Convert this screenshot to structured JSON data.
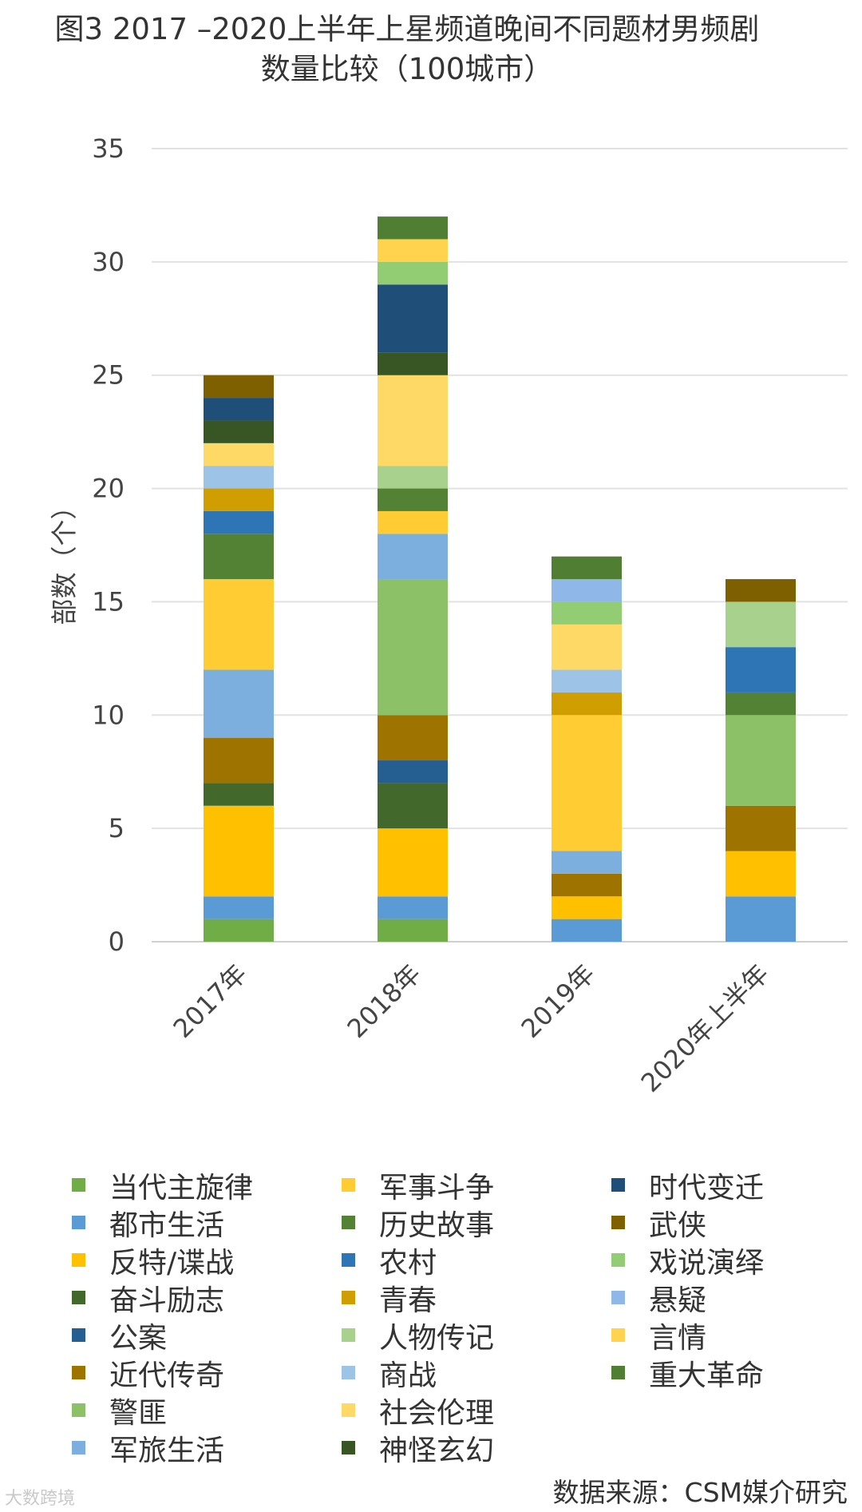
{
  "chart_data": {
    "type": "bar",
    "stacked": true,
    "title": [
      "图3  2017  –2020上半年上星频道晚间不同题材男频剧",
      "数量比较（100城市）"
    ],
    "ylabel": "部数（个）",
    "xlabel": "",
    "ylim": [
      0,
      35
    ],
    "yticks": [
      0,
      5,
      10,
      15,
      20,
      25,
      30,
      35
    ],
    "grid": true,
    "legend_position": "bottom",
    "categories": [
      "2017年",
      "2018年",
      "2019年",
      "2020年上半年"
    ],
    "series": [
      {
        "name": "当代主旋律",
        "color": "#70AD47",
        "values": [
          1,
          1,
          0,
          0
        ]
      },
      {
        "name": "都市生活",
        "color": "#5B9BD5",
        "values": [
          1,
          1,
          1,
          2
        ]
      },
      {
        "name": "反特/谍战",
        "color": "#FFC000",
        "values": [
          4,
          3,
          1,
          2
        ]
      },
      {
        "name": "奋斗励志",
        "color": "#43682B",
        "values": [
          1,
          2,
          0,
          0
        ]
      },
      {
        "name": "公案",
        "color": "#255E91",
        "values": [
          0,
          1,
          0,
          0
        ]
      },
      {
        "name": "近代传奇",
        "color": "#9E7300",
        "values": [
          2,
          2,
          1,
          2
        ]
      },
      {
        "name": "警匪",
        "color": "#8CC168",
        "values": [
          0,
          6,
          0,
          4
        ]
      },
      {
        "name": "军旅生活",
        "color": "#7CAFDD",
        "values": [
          3,
          2,
          1,
          0
        ]
      },
      {
        "name": "军事斗争",
        "color": "#FFCD33",
        "values": [
          4,
          1,
          6,
          0
        ]
      },
      {
        "name": "历史故事",
        "color": "#548235",
        "values": [
          2,
          1,
          0,
          1
        ]
      },
      {
        "name": "农村",
        "color": "#2E75B6",
        "values": [
          1,
          0,
          0,
          2
        ]
      },
      {
        "name": "青春",
        "color": "#D09E00",
        "values": [
          1,
          0,
          1,
          0
        ]
      },
      {
        "name": "人物传记",
        "color": "#A9D18E",
        "values": [
          0,
          1,
          0,
          2
        ]
      },
      {
        "name": "商战",
        "color": "#9DC3E6",
        "values": [
          1,
          0,
          1,
          0
        ]
      },
      {
        "name": "社会伦理",
        "color": "#FFD966",
        "values": [
          1,
          4,
          2,
          0
        ]
      },
      {
        "name": "神怪玄幻",
        "color": "#375623",
        "values": [
          1,
          1,
          0,
          0
        ]
      },
      {
        "name": "时代变迁",
        "color": "#1F4E79",
        "values": [
          1,
          3,
          0,
          0
        ]
      },
      {
        "name": "武侠",
        "color": "#7F6000",
        "values": [
          1,
          0,
          0,
          1
        ]
      },
      {
        "name": "戏说演绎",
        "color": "#93CD73",
        "values": [
          0,
          1,
          1,
          0
        ]
      },
      {
        "name": "悬疑",
        "color": "#8FB8E8",
        "values": [
          0,
          0,
          1,
          0
        ]
      },
      {
        "name": "言情",
        "color": "#FFD34D",
        "values": [
          0,
          1,
          0,
          0
        ]
      },
      {
        "name": "重大革命",
        "color": "#507E32",
        "values": [
          0,
          1,
          1,
          0
        ]
      }
    ]
  },
  "source_note": "数据来源：CSM媒介研究",
  "watermark": "大数跨境"
}
